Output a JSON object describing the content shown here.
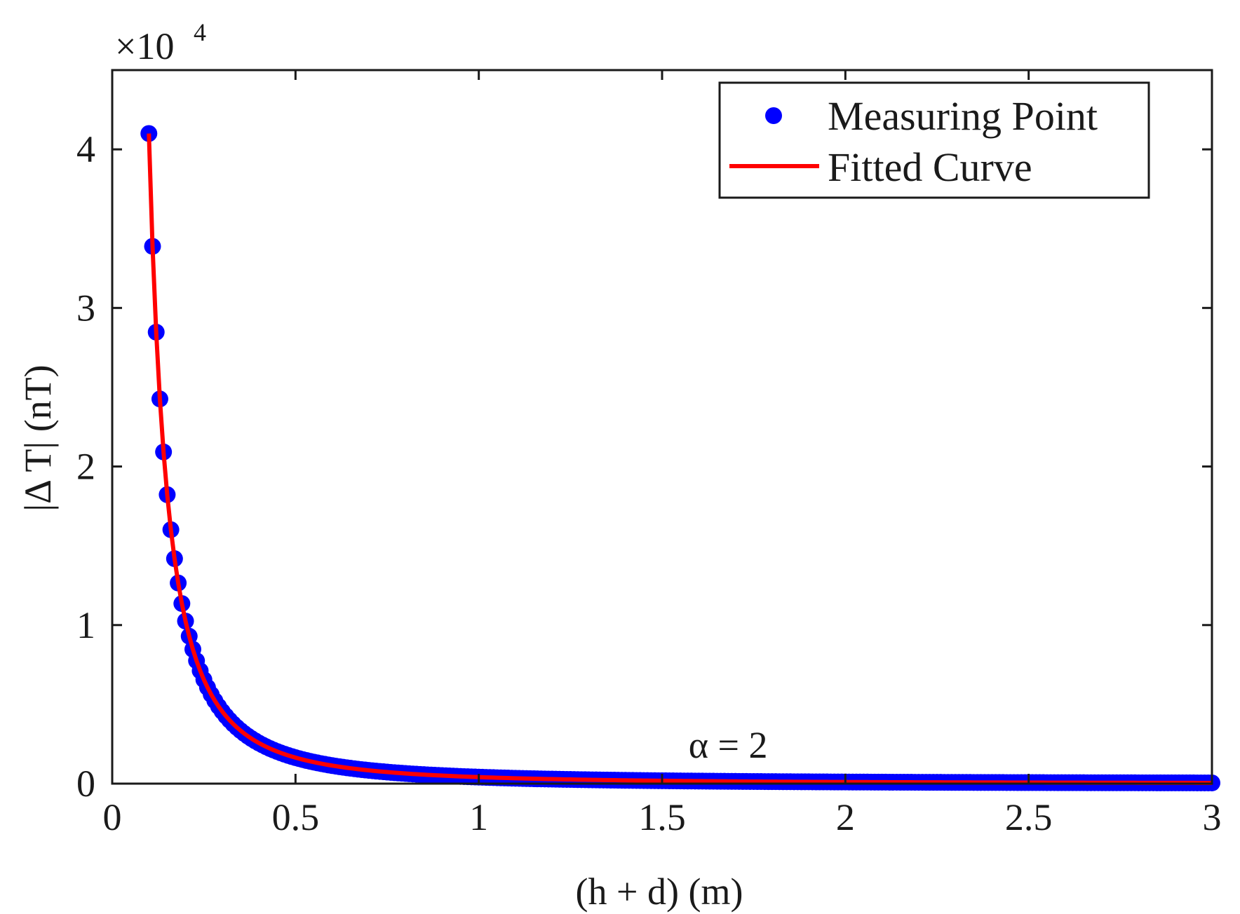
{
  "chart_data": {
    "type": "scatter",
    "xlabel": "(h + d) (m)",
    "ylabel": "|Δ T| (nT)",
    "xlim": [
      0,
      3
    ],
    "ylim": [
      0,
      45000
    ],
    "x_ticks": [
      0,
      0.5,
      1,
      1.5,
      2,
      2.5,
      3
    ],
    "x_tick_labels": [
      "0",
      "0.5",
      "1",
      "1.5",
      "2",
      "2.5",
      "3"
    ],
    "y_ticks": [
      0,
      10000,
      20000,
      30000,
      40000
    ],
    "y_tick_labels": [
      "0",
      "1",
      "2",
      "3",
      "4"
    ],
    "y_exponent": {
      "base": "×10",
      "power": "4"
    },
    "annotation": {
      "text": "α = 2",
      "x": 1.68,
      "y": 1200
    },
    "model": {
      "form": "k / x^alpha",
      "k": 410,
      "alpha": 2
    },
    "series": [
      {
        "name": "Measuring Point",
        "kind": "markers",
        "color": "#0000ff",
        "x_start": 0.1,
        "x_end": 3.0,
        "x_step": 0.01
      },
      {
        "name": "Fitted Curve",
        "kind": "line",
        "color": "#ff0000",
        "x_start": 0.1,
        "x_end": 3.0,
        "x_step": 0.01
      }
    ],
    "legend": {
      "placement": "top-right",
      "entries": [
        "Measuring Point",
        "Fitted Curve"
      ]
    }
  }
}
